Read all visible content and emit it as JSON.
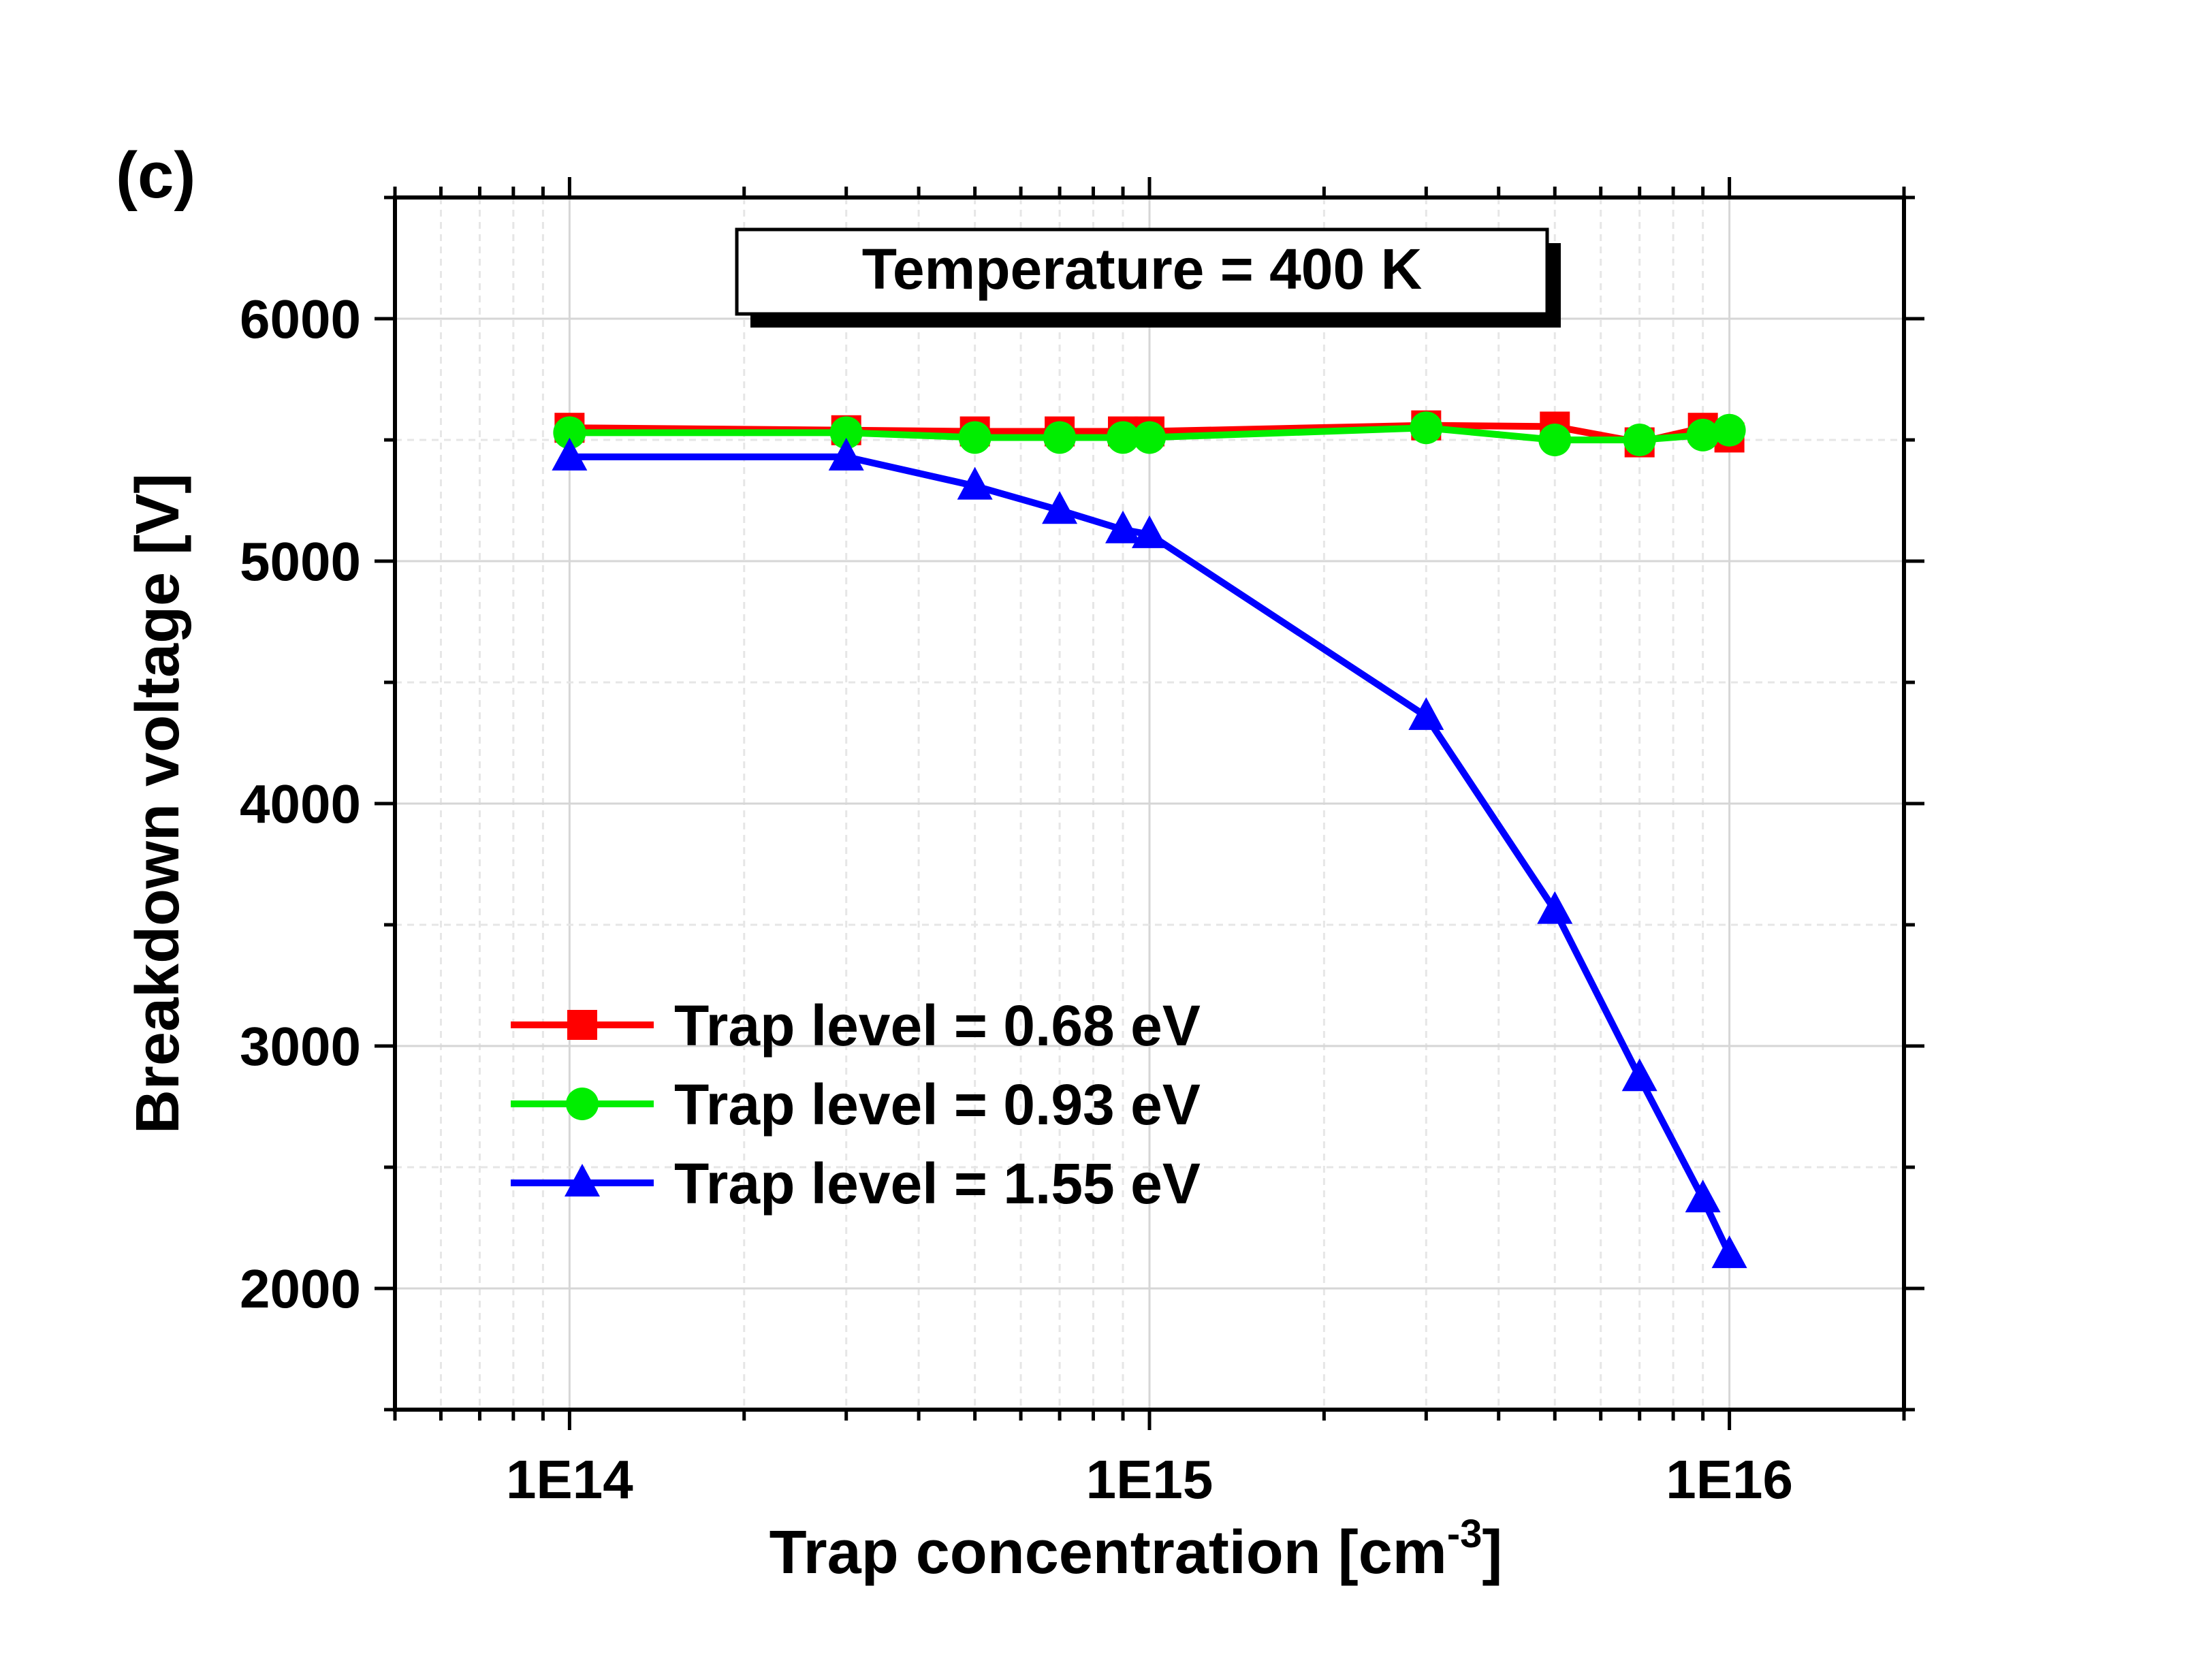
{
  "panel_label": "(c)",
  "chart_data": {
    "type": "line",
    "annotation": "Temperature = 400 K",
    "xlabel_main": "Trap concentration [cm",
    "xlabel_sup": "-3",
    "xlabel_end": "]",
    "ylabel": "Breakdown voltage [V]",
    "x_scale": "log",
    "xlim": [
      50000000000000.0,
      2e+16
    ],
    "ylim": [
      1500,
      6500
    ],
    "x_ticks": [
      {
        "value": 100000000000000.0,
        "label": "1E14"
      },
      {
        "value": 1000000000000000.0,
        "label": "1E15"
      },
      {
        "value": 1e+16,
        "label": "1E16"
      }
    ],
    "y_ticks": [
      {
        "value": 2000,
        "label": "2000"
      },
      {
        "value": 3000,
        "label": "3000"
      },
      {
        "value": 4000,
        "label": "4000"
      },
      {
        "value": 5000,
        "label": "5000"
      },
      {
        "value": 6000,
        "label": "6000"
      }
    ],
    "grid": true,
    "legend_position": "bottom-left",
    "series": [
      {
        "name": "Trap level = 0.68 eV",
        "color": "#ff0000",
        "marker": "square",
        "x": [
          100000000000000.0,
          300000000000000.0,
          500000000000000.0,
          700000000000000.0,
          900000000000000.0,
          1000000000000000.0,
          3000000000000000.0,
          5000000000000000.0,
          7000000000000000.0,
          9000000000000000.0,
          1e+16
        ],
        "y": [
          5550,
          5540,
          5535,
          5535,
          5535,
          5535,
          5560,
          5555,
          5490,
          5550,
          5510
        ]
      },
      {
        "name": "Trap level = 0.93 eV",
        "color": "#00ee00",
        "marker": "circle",
        "x": [
          100000000000000.0,
          300000000000000.0,
          500000000000000.0,
          700000000000000.0,
          900000000000000.0,
          1000000000000000.0,
          3000000000000000.0,
          5000000000000000.0,
          7000000000000000.0,
          9000000000000000.0,
          1e+16
        ],
        "y": [
          5530,
          5530,
          5510,
          5510,
          5510,
          5510,
          5550,
          5500,
          5500,
          5520,
          5540
        ]
      },
      {
        "name": "Trap level = 1.55 eV",
        "color": "#0000ff",
        "marker": "triangle",
        "x": [
          100000000000000.0,
          300000000000000.0,
          500000000000000.0,
          700000000000000.0,
          900000000000000.0,
          1000000000000000.0,
          3000000000000000.0,
          5000000000000000.0,
          7000000000000000.0,
          9000000000000000.0,
          1e+16
        ],
        "y": [
          5430,
          5430,
          5310,
          5210,
          5130,
          5110,
          4360,
          3560,
          2870,
          2370,
          2140
        ]
      }
    ]
  }
}
